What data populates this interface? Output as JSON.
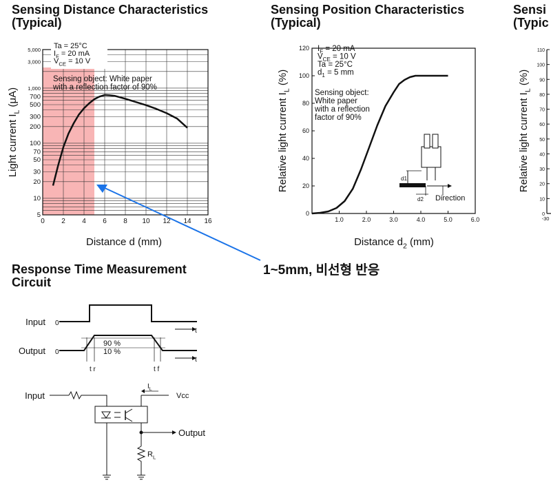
{
  "titles": {
    "distance": "Sensing Distance Characteristics\n(Typical)",
    "position": "Sensing Position Characteristics\n(Typical)",
    "third": "Sensi\n(Typic",
    "response": "Response Time Measurement\nCircuit"
  },
  "annotation": {
    "text": "1~5mm, 비선형 반응",
    "color": "#1a73e8",
    "highlight_color": "#f7a8a8"
  },
  "chart_data": [
    {
      "type": "line",
      "title": "Sensing Distance Characteristics (Typical)",
      "xlabel": "Distance d (mm)",
      "ylabel_main": "Light current I",
      "ylabel_sub": "L",
      "ylabel_unit": " (μA)",
      "xlim": [
        0,
        16
      ],
      "ylim": [
        5,
        5000
      ],
      "yscale": "log",
      "xticks": [
        "0",
        "2",
        "4",
        "6",
        "8",
        "10",
        "12",
        "14",
        "16"
      ],
      "yticks": [
        "5",
        "10",
        "20",
        "30",
        "50",
        "70",
        "100",
        "200",
        "300",
        "500",
        "700",
        "1,000",
        "3,000",
        "5,000"
      ],
      "conditions": [
        {
          "main": "Ta = 25°C",
          "sub": ""
        },
        {
          "main": "I",
          "sub": "F",
          "rest": " = 20 mA"
        },
        {
          "main": "V",
          "sub": "CE",
          "rest": " = 10 V"
        }
      ],
      "note": [
        "Sensing object: White paper",
        "with a reflection factor of 90%"
      ],
      "highlight_x": [
        0,
        5
      ],
      "series": [
        {
          "x": [
            1.0,
            1.5,
            2.0,
            2.5,
            3.0,
            3.5,
            4.0,
            4.5,
            5.0,
            5.5,
            6.0,
            6.5,
            7.0,
            8.0,
            9.0,
            10.0,
            11.0,
            12.0,
            13.0,
            14.0
          ],
          "y": [
            17,
            40,
            85,
            150,
            230,
            330,
            430,
            530,
            630,
            700,
            750,
            740,
            720,
            640,
            560,
            490,
            420,
            350,
            280,
            190
          ]
        }
      ]
    },
    {
      "type": "line",
      "title": "Sensing Position Characteristics (Typical)",
      "xlabel_main": "Distance d",
      "xlabel_sub": "2",
      "xlabel_unit": " (mm)",
      "ylabel_main": "Relative light current I",
      "ylabel_sub": "L",
      "ylabel_unit": " (%)",
      "xlim": [
        0,
        6
      ],
      "ylim": [
        0,
        120
      ],
      "xticks": [
        "1.0",
        "2.0",
        "3.0",
        "4.0",
        "5.0",
        "6.0"
      ],
      "yticks": [
        "0",
        "20",
        "40",
        "60",
        "80",
        "100",
        "120"
      ],
      "conditions": [
        {
          "main": "I",
          "sub": "F",
          "rest": " = 20 mA"
        },
        {
          "main": "V",
          "sub": "CE",
          "rest": " = 10 V"
        },
        {
          "main": "Ta = 25°C",
          "sub": ""
        },
        {
          "main": "d",
          "sub": "1",
          "rest": " = 5 mm"
        }
      ],
      "note": [
        "Sensing object:",
        "White paper",
        "with a reflection",
        "factor of 90%"
      ],
      "diagram_labels": {
        "d1": "d1",
        "d2": "d2",
        "direction": "Direction"
      },
      "series": [
        {
          "x": [
            0.0,
            0.3,
            0.6,
            0.9,
            1.2,
            1.5,
            1.8,
            2.1,
            2.4,
            2.7,
            3.0,
            3.2,
            3.4,
            3.6,
            3.8,
            4.0,
            4.5,
            5.0
          ],
          "y": [
            0,
            0.5,
            1.5,
            4,
            9,
            18,
            32,
            48,
            64,
            78,
            88,
            94,
            97,
            99,
            100,
            100,
            100,
            100
          ]
        }
      ]
    },
    {
      "type": "line",
      "title": "Sensi (Typic",
      "ylabel": "Relative light current I",
      "ylabel_sub": "L",
      "ylabel_unit": " (%)",
      "yticks": [
        "0",
        "10",
        "20",
        "30",
        "40",
        "50",
        "60",
        "70",
        "80",
        "90",
        "100",
        "110"
      ],
      "xticks": [
        "-30"
      ]
    }
  ],
  "response": {
    "input_label": "Input",
    "output_label": "Output",
    "zero": "0",
    "t": "t",
    "pct90": "90 %",
    "pct10": "10 %",
    "tr": "t r",
    "tf": "t f"
  },
  "circuit": {
    "input_label": "Input",
    "il_label": "I",
    "il_sub": "L",
    "vcc_label": "Vcc",
    "output_label": "Output",
    "rl_label": "R",
    "rl_sub": "L"
  }
}
